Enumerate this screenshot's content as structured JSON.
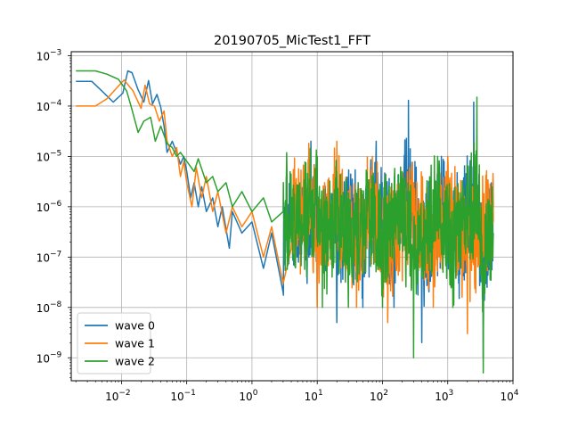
{
  "chart_data": {
    "type": "line",
    "title": "20190705_MicTest1_FFT",
    "xlabel": "",
    "ylabel": "",
    "xscale": "log",
    "yscale": "log",
    "xlim": [
      0.0017,
      10000
    ],
    "ylim": [
      3.5e-10,
      0.0012
    ],
    "grid": true,
    "legend": "lower-left",
    "x_ticks": [
      {
        "value": 0.01,
        "base": "10",
        "exp": "−2"
      },
      {
        "value": 0.1,
        "base": "10",
        "exp": "−1"
      },
      {
        "value": 1,
        "base": "10",
        "exp": "0"
      },
      {
        "value": 10,
        "base": "10",
        "exp": "1"
      },
      {
        "value": 100,
        "base": "10",
        "exp": "2"
      },
      {
        "value": 1000,
        "base": "10",
        "exp": "3"
      },
      {
        "value": 10000,
        "base": "10",
        "exp": "4"
      }
    ],
    "y_ticks": [
      {
        "value": 1e-09,
        "base": "10",
        "exp": "−9"
      },
      {
        "value": 1e-08,
        "base": "10",
        "exp": "−8"
      },
      {
        "value": 1e-07,
        "base": "10",
        "exp": "−7"
      },
      {
        "value": 1e-06,
        "base": "10",
        "exp": "−6"
      },
      {
        "value": 1e-05,
        "base": "10",
        "exp": "−5"
      },
      {
        "value": 0.0001,
        "base": "10",
        "exp": "−4"
      },
      {
        "value": 0.001,
        "base": "10",
        "exp": "−3"
      }
    ],
    "series": [
      {
        "name": "wave 0",
        "color": "#1f77b4",
        "points": [
          [
            0.002,
            0.00031
          ],
          [
            0.0035,
            0.00031
          ],
          [
            0.005,
            0.0002
          ],
          [
            0.0075,
            0.00012
          ],
          [
            0.0105,
            0.00018
          ],
          [
            0.0125,
            0.0005
          ],
          [
            0.0145,
            0.00046
          ],
          [
            0.018,
            0.00021
          ],
          [
            0.022,
            0.00012
          ],
          [
            0.026,
            0.00032
          ],
          [
            0.03,
            0.00011
          ],
          [
            0.035,
            0.00017
          ],
          [
            0.04,
            9.5e-05
          ],
          [
            0.045,
            4e-05
          ],
          [
            0.05,
            1.2e-05
          ],
          [
            0.06,
            2e-05
          ],
          [
            0.07,
            1.2e-05
          ],
          [
            0.08,
            7e-06
          ],
          [
            0.09,
            1e-05
          ],
          [
            0.1,
            5e-06
          ],
          [
            0.115,
            1.5e-06
          ],
          [
            0.13,
            3e-06
          ],
          [
            0.15,
            1e-06
          ],
          [
            0.17,
            2.5e-06
          ],
          [
            0.2,
            8e-07
          ],
          [
            0.25,
            1.5e-06
          ],
          [
            0.3,
            4e-07
          ],
          [
            0.35,
            1e-06
          ],
          [
            0.45,
            1.5e-07
          ],
          [
            0.5,
            8e-07
          ],
          [
            0.7,
            3e-07
          ],
          [
            1.0,
            5e-07
          ],
          [
            1.5,
            6e-08
          ],
          [
            2.0,
            3e-07
          ],
          [
            3.0,
            2e-08
          ],
          [
            5.0,
            1e-07
          ],
          [
            7.0,
            3e-08
          ],
          [
            8.0,
            2e-05
          ],
          [
            10.0,
            1e-08
          ],
          [
            15.0,
            1e-06
          ],
          [
            20.0,
            5e-09
          ],
          [
            30.0,
            2e-06
          ],
          [
            50.0,
            1e-08
          ],
          [
            80.0,
            2e-05
          ],
          [
            150.0,
            1e-08
          ],
          [
            250.0,
            0.00013
          ],
          [
            400.0,
            2e-09
          ],
          [
            800.0,
            1e-05
          ],
          [
            1500.0,
            1.5e-08
          ],
          [
            2500.0,
            0.00012
          ],
          [
            3500.0,
            1e-09
          ],
          [
            5000.0,
            1e-06
          ]
        ]
      },
      {
        "name": "wave 1",
        "color": "#ff7f0e",
        "points": [
          [
            0.002,
            0.0001
          ],
          [
            0.004,
            0.0001
          ],
          [
            0.006,
            0.00014
          ],
          [
            0.009,
            0.00025
          ],
          [
            0.011,
            0.00033
          ],
          [
            0.015,
            0.0002
          ],
          [
            0.02,
            9e-05
          ],
          [
            0.023,
            0.00026
          ],
          [
            0.027,
            0.00011
          ],
          [
            0.032,
            0.0001
          ],
          [
            0.038,
            5e-05
          ],
          [
            0.045,
            8e-05
          ],
          [
            0.05,
            2e-05
          ],
          [
            0.06,
            1e-05
          ],
          [
            0.07,
            1.5e-05
          ],
          [
            0.08,
            4e-06
          ],
          [
            0.09,
            8e-06
          ],
          [
            0.1,
            3e-06
          ],
          [
            0.12,
            1e-06
          ],
          [
            0.14,
            6e-06
          ],
          [
            0.17,
            1.5e-06
          ],
          [
            0.2,
            4e-06
          ],
          [
            0.25,
            8e-07
          ],
          [
            0.3,
            2e-06
          ],
          [
            0.4,
            3e-07
          ],
          [
            0.5,
            1e-06
          ],
          [
            0.7,
            4e-07
          ],
          [
            1.0,
            8e-07
          ],
          [
            1.5,
            1e-07
          ],
          [
            2.0,
            4e-07
          ],
          [
            3.0,
            3e-08
          ],
          [
            4.0,
            1.5e-07
          ],
          [
            6.0,
            2e-07
          ],
          [
            8.0,
            3e-06
          ],
          [
            10.0,
            1e-08
          ],
          [
            20.0,
            2e-05
          ],
          [
            40.0,
            1e-08
          ],
          [
            70.0,
            1e-05
          ],
          [
            120.0,
            5e-09
          ],
          [
            300.0,
            3e-06
          ],
          [
            600.0,
            1e-08
          ],
          [
            1000.0,
            1e-05
          ],
          [
            2000.0,
            3e-09
          ],
          [
            3500.0,
            1e-07
          ],
          [
            5000.0,
            5e-07
          ]
        ]
      },
      {
        "name": "wave 2",
        "color": "#2ca02c",
        "points": [
          [
            0.002,
            0.0005
          ],
          [
            0.004,
            0.0005
          ],
          [
            0.006,
            0.00043
          ],
          [
            0.009,
            0.00034
          ],
          [
            0.012,
            0.0002
          ],
          [
            0.014,
            0.0001
          ],
          [
            0.018,
            3e-05
          ],
          [
            0.022,
            5e-05
          ],
          [
            0.028,
            6e-05
          ],
          [
            0.033,
            2e-05
          ],
          [
            0.04,
            4e-05
          ],
          [
            0.05,
            1.8e-05
          ],
          [
            0.06,
            1.5e-05
          ],
          [
            0.07,
            1e-05
          ],
          [
            0.08,
            1.2e-05
          ],
          [
            0.1,
            8e-06
          ],
          [
            0.13,
            5e-06
          ],
          [
            0.15,
            9e-06
          ],
          [
            0.2,
            3e-06
          ],
          [
            0.25,
            4e-06
          ],
          [
            0.3,
            2e-06
          ],
          [
            0.4,
            3e-06
          ],
          [
            0.5,
            1e-06
          ],
          [
            0.7,
            2e-06
          ],
          [
            1.0,
            8e-07
          ],
          [
            1.5,
            1.5e-06
          ],
          [
            2.0,
            5e-07
          ],
          [
            3.0,
            8e-07
          ],
          [
            5.0,
            3e-07
          ],
          [
            8.0,
            1e-06
          ],
          [
            10.0,
            1e-05
          ],
          [
            12.0,
            1e-08
          ],
          [
            20.0,
            5e-06
          ],
          [
            30.0,
            1e-08
          ],
          [
            60.0,
            3e-06
          ],
          [
            100.0,
            1e-08
          ],
          [
            200.0,
            5e-06
          ],
          [
            300.0,
            1e-09
          ],
          [
            700.0,
            1e-05
          ],
          [
            1200.0,
            1e-08
          ],
          [
            2800.0,
            0.00015
          ],
          [
            3500.0,
            5e-10
          ],
          [
            5000.0,
            3e-07
          ]
        ]
      }
    ]
  }
}
